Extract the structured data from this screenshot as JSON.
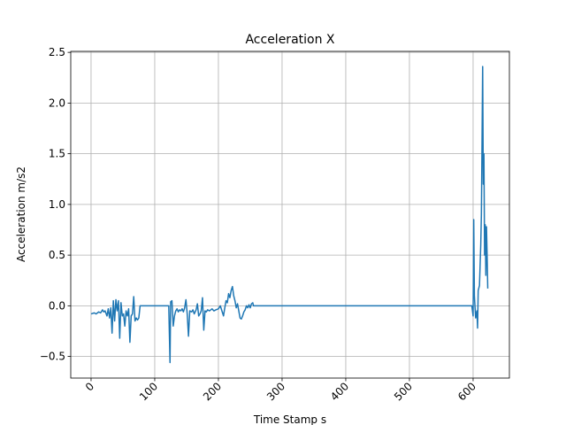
{
  "chart_data": {
    "type": "line",
    "title": "Acceleration X",
    "xlabel": "Time Stamp s",
    "ylabel": "Acceleration m/s2",
    "color": "#1f77b4",
    "grid": true,
    "xlim": [
      -31.9,
      657
    ],
    "ylim": [
      -0.713,
      2.51
    ],
    "xticks": [
      0,
      100,
      200,
      300,
      400,
      500,
      600
    ],
    "yticks": [
      {
        "value": -0.5,
        "label": "−0.5"
      },
      {
        "value": 0,
        "label": "0.0"
      },
      {
        "value": 0.5,
        "label": "0.5"
      },
      {
        "value": 1,
        "label": "1.0"
      },
      {
        "value": 1.5,
        "label": "1.5"
      },
      {
        "value": 2,
        "label": "2.0"
      },
      {
        "value": 2.5,
        "label": "2.5"
      }
    ],
    "x": [
      0,
      5,
      8,
      12,
      15,
      18,
      20,
      22,
      25,
      27,
      29,
      31,
      33,
      35,
      37,
      39,
      41,
      43,
      45,
      47,
      49,
      51,
      53,
      55,
      57,
      59,
      61,
      63,
      65,
      67,
      69,
      71,
      73,
      75,
      77,
      80,
      122,
      124,
      125,
      127,
      129,
      131,
      133,
      135,
      137,
      139,
      141,
      143,
      145,
      147,
      149,
      151,
      153,
      155,
      158,
      160,
      162,
      165,
      167,
      169,
      171,
      173,
      175,
      177,
      179,
      181,
      183,
      186,
      190,
      193,
      196,
      200,
      203,
      206,
      208,
      210,
      212,
      214,
      216,
      218,
      220,
      222,
      224,
      226,
      228,
      230,
      232,
      234,
      236,
      238,
      240,
      242,
      244,
      246,
      248,
      250,
      252,
      254,
      255,
      598,
      600,
      601,
      602,
      604,
      606,
      607,
      608,
      610,
      612,
      613,
      614,
      615,
      616,
      617,
      618,
      619,
      620,
      621,
      622,
      623
    ],
    "values": [
      -0.08,
      -0.07,
      -0.08,
      -0.06,
      -0.07,
      -0.04,
      -0.06,
      -0.05,
      -0.1,
      -0.03,
      -0.12,
      -0.02,
      -0.27,
      0.05,
      -0.15,
      0.06,
      -0.05,
      0.05,
      -0.32,
      0.03,
      -0.1,
      -0.08,
      -0.2,
      -0.05,
      -0.1,
      -0.03,
      -0.36,
      -0.1,
      -0.08,
      0.09,
      -0.15,
      -0.12,
      -0.14,
      -0.12,
      0.0,
      0.0,
      0.0,
      -0.56,
      0.04,
      0.05,
      -0.2,
      -0.1,
      -0.05,
      -0.03,
      -0.06,
      -0.04,
      -0.05,
      -0.03,
      -0.06,
      -0.02,
      0.06,
      -0.08,
      -0.3,
      -0.05,
      -0.06,
      -0.04,
      -0.08,
      -0.04,
      0.02,
      -0.1,
      -0.08,
      -0.05,
      0.08,
      -0.24,
      -0.05,
      -0.06,
      -0.04,
      -0.05,
      -0.03,
      -0.05,
      -0.04,
      -0.03,
      0.0,
      -0.06,
      -0.1,
      -0.02,
      0.05,
      0.03,
      0.12,
      0.08,
      0.15,
      0.19,
      0.1,
      0.05,
      -0.02,
      0.02,
      -0.05,
      -0.12,
      -0.13,
      -0.1,
      -0.06,
      -0.04,
      0.0,
      -0.02,
      0.01,
      -0.02,
      0.02,
      0.03,
      0.0,
      0.0,
      -0.1,
      0.85,
      0.1,
      -0.12,
      -0.05,
      -0.22,
      0.15,
      0.2,
      0.6,
      0.9,
      1.6,
      2.36,
      1.2,
      1.5,
      0.5,
      0.8,
      0.3,
      0.78,
      0.5,
      0.17
    ]
  }
}
